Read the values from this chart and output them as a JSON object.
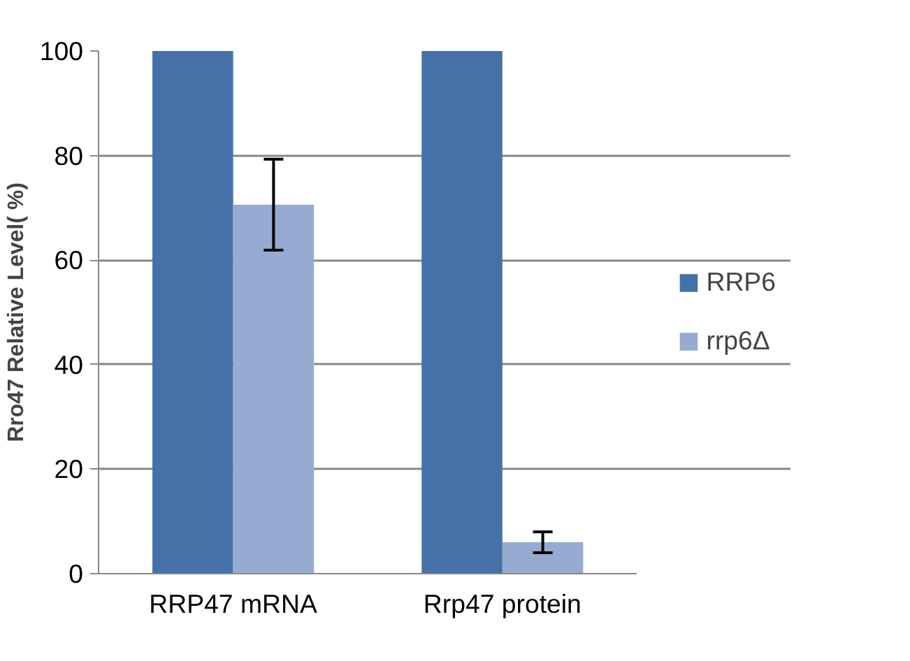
{
  "chart_data": {
    "type": "bar",
    "ylabel": "Rro47 Relative Level( %)",
    "categories": [
      "RRP47 mRNA",
      "Rrp47 protein"
    ],
    "series": [
      {
        "name": "RRP6",
        "color": "#4472a8",
        "values": [
          100,
          100
        ]
      },
      {
        "name": "rrp6Δ",
        "color": "#95abd1",
        "values": [
          70.6,
          6
        ],
        "errors": [
          8.7,
          2
        ]
      }
    ],
    "ylim": [
      0,
      100
    ],
    "yticks": [
      0,
      20,
      40,
      60,
      80,
      100
    ],
    "grid": "y",
    "legend": "right"
  }
}
